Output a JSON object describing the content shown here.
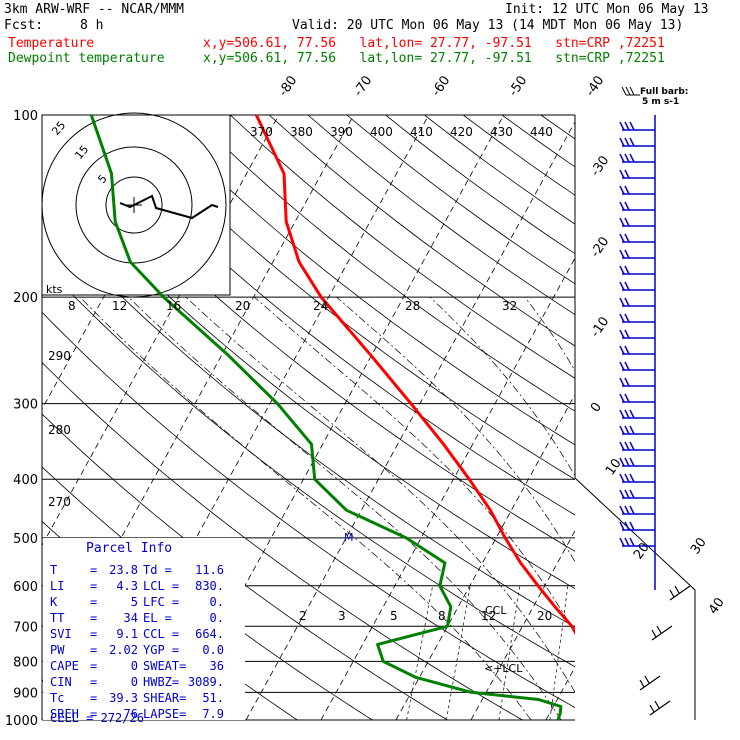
{
  "header": {
    "model": "3km ARW-WRF -- NCAR/MMM",
    "init": "Init: 12 UTC Mon 06 May 13",
    "fcst_label": "Fcst:",
    "fcst_value": "8 h",
    "valid": "Valid: 20 UTC Mon 06 May 13 (14 MDT Mon 06 May 13)",
    "temp_label": "Temperature",
    "temp_info": "x,y=506.61, 77.56   lat,lon= 27.77, -97.51   stn=CRP ,72251",
    "dew_label": "Dewpoint temperature",
    "dew_info": "x,y=506.61, 77.56   lat,lon= 27.77, -97.51   stn=CRP ,72251"
  },
  "colors": {
    "temperature": "#ff0000",
    "dewpoint": "#008000",
    "barbs": "#0000cc",
    "parcel": "#0000cc"
  },
  "chart_data": {
    "type": "line",
    "chart_kind": "skew-T log-P sounding",
    "y_axis": {
      "scale": "log",
      "ylim": [
        1000,
        100
      ],
      "ticks": [
        100,
        200,
        300,
        400,
        500,
        600,
        700,
        800,
        900,
        1000
      ]
    },
    "isotherm_labels": [
      "-80",
      "-70",
      "-60",
      "-50",
      "-40",
      "-30",
      "-20",
      "-10",
      "0",
      "10",
      "20",
      "30",
      "40"
    ],
    "theta_e_labels": [
      "370",
      "380",
      "390",
      "400",
      "410",
      "420",
      "430",
      "440"
    ],
    "theta_labels": [
      "290",
      "280",
      "270"
    ],
    "mixing_ratio_labels": [
      "2",
      "3",
      "5",
      "8",
      "12",
      "20"
    ],
    "hodograph_speed_labels": [
      "8",
      "12",
      "16",
      "20",
      "24",
      "28",
      "32"
    ],
    "hodograph_rings": [
      "5",
      "15",
      "25"
    ],
    "hodograph_units": "kts",
    "series": [
      {
        "name": "Temperature",
        "points": [
          {
            "p": 1000,
            "t": 23.8
          },
          {
            "p": 975,
            "t": 21.6
          },
          {
            "p": 950,
            "t": 19.8
          },
          {
            "p": 925,
            "t": 18.6
          },
          {
            "p": 900,
            "t": 17.1
          },
          {
            "p": 850,
            "t": 14.2
          },
          {
            "p": 800,
            "t": 11.6
          },
          {
            "p": 750,
            "t": 9.2
          },
          {
            "p": 700,
            "t": 6.6
          },
          {
            "p": 650,
            "t": 2.9
          },
          {
            "p": 600,
            "t": -0.9
          },
          {
            "p": 550,
            "t": -4.9
          },
          {
            "p": 500,
            "t": -8.8
          },
          {
            "p": 450,
            "t": -12.8
          },
          {
            "p": 400,
            "t": -17.9
          },
          {
            "p": 350,
            "t": -23.9
          },
          {
            "p": 300,
            "t": -31.2
          },
          {
            "p": 250,
            "t": -40.0
          },
          {
            "p": 200,
            "t": -51.0
          },
          {
            "p": 175,
            "t": -56.5
          },
          {
            "p": 150,
            "t": -61.2
          },
          {
            "p": 125,
            "t": -65.0
          },
          {
            "p": 100,
            "t": -73.0
          }
        ]
      },
      {
        "name": "Dewpoint temperature",
        "points": [
          {
            "p": 1000,
            "t": 11.6
          },
          {
            "p": 975,
            "t": 11.4
          },
          {
            "p": 950,
            "t": 11.0
          },
          {
            "p": 925,
            "t": 7.5
          },
          {
            "p": 900,
            "t": -2.0
          },
          {
            "p": 850,
            "t": -10.5
          },
          {
            "p": 800,
            "t": -16.0
          },
          {
            "p": 750,
            "t": -18.0
          },
          {
            "p": 700,
            "t": -10.0
          },
          {
            "p": 650,
            "t": -11.0
          },
          {
            "p": 600,
            "t": -14.0
          },
          {
            "p": 550,
            "t": -15.0
          },
          {
            "p": 500,
            "t": -22.0
          },
          {
            "p": 450,
            "t": -32.0
          },
          {
            "p": 400,
            "t": -38.5
          },
          {
            "p": 350,
            "t": -41.5
          },
          {
            "p": 300,
            "t": -49.0
          },
          {
            "p": 250,
            "t": -59.0
          },
          {
            "p": 200,
            "t": -72.0
          },
          {
            "p": 175,
            "t": -79.0
          },
          {
            "p": 150,
            "t": -84.0
          },
          {
            "p": 125,
            "t": -88.0
          },
          {
            "p": 100,
            "t": -95.0
          }
        ]
      }
    ],
    "ccl_label": "CCL",
    "lcl_label": "<+LCL",
    "marker_label": "M",
    "barb_legend": {
      "line1": "Full barb:",
      "line2": "5 m s-1"
    }
  },
  "parcel_info": {
    "title": "Parcel Info",
    "rows": [
      {
        "l1": "T",
        "v1": "23.8",
        "l2": "Td =",
        "v2": "11.6"
      },
      {
        "l1": "LI",
        "v1": "4.3",
        "l2": "LCL =",
        "v2": "830."
      },
      {
        "l1": "K",
        "v1": "5",
        "l2": "LFC =",
        "v2": "0."
      },
      {
        "l1": "TT",
        "v1": "34",
        "l2": "EL =",
        "v2": "0."
      },
      {
        "l1": "SVI",
        "v1": "9.1",
        "l2": "CCL =",
        "v2": "664."
      },
      {
        "l1": "PW",
        "v1": "2.02",
        "l2": "YGP =",
        "v2": "0.0"
      },
      {
        "l1": "CAPE",
        "v1": "0",
        "l2": "SWEAT=",
        "v2": "36"
      },
      {
        "l1": "CIN",
        "v1": "0",
        "l2": "HWBZ=",
        "v2": "3089."
      },
      {
        "l1": "Tc",
        "v1": "39.3",
        "l2": "SHEAR=",
        "v2": "51."
      },
      {
        "l1": "SREH",
        "v1": "76",
        "l2": "LAPSE=",
        "v2": "7.9"
      }
    ],
    "cell": "CELL = 272/26"
  }
}
